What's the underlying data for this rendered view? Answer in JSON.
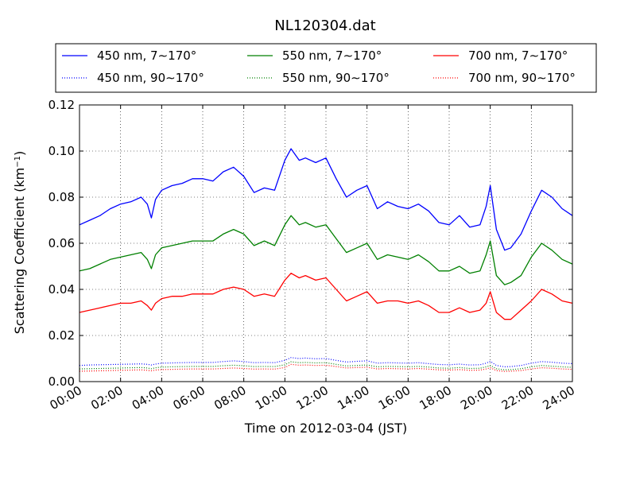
{
  "chart_data": {
    "type": "line",
    "title": "NL120304.dat",
    "xlabel": "Time on 2012-03-04 (JST)",
    "ylabel_main": "Scattering Coefficient (km",
    "ylabel_sup": "−1",
    "ylabel_end": ")",
    "xlim": [
      0,
      24
    ],
    "ylim": [
      0,
      0.12
    ],
    "grid": true,
    "legend_position": "above plot",
    "x_ticks": [
      0,
      2,
      4,
      6,
      8,
      10,
      12,
      14,
      16,
      18,
      20,
      22,
      24
    ],
    "x_tick_labels": [
      "00:00",
      "02:00",
      "04:00",
      "06:00",
      "08:00",
      "10:00",
      "12:00",
      "14:00",
      "16:00",
      "18:00",
      "20:00",
      "22:00",
      "24:00"
    ],
    "y_ticks": [
      0,
      0.02,
      0.04,
      0.06,
      0.08,
      0.1,
      0.12
    ],
    "y_tick_labels": [
      "0.00",
      "0.02",
      "0.04",
      "0.06",
      "0.08",
      "0.10",
      "0.12"
    ],
    "x": [
      0,
      0.5,
      1,
      1.5,
      2,
      2.5,
      3,
      3.3,
      3.5,
      3.7,
      4,
      4.5,
      5,
      5.5,
      6,
      6.5,
      7,
      7.5,
      8,
      8.5,
      9,
      9.5,
      10,
      10.3,
      10.7,
      11,
      11.5,
      12,
      12.5,
      13,
      13.5,
      14,
      14.5,
      15,
      15.5,
      16,
      16.5,
      17,
      17.5,
      18,
      18.5,
      19,
      19.5,
      19.8,
      20,
      20.3,
      20.7,
      21,
      21.5,
      22,
      22.5,
      23,
      23.5,
      24
    ],
    "series": [
      {
        "name": "450 nm, 7∼170°",
        "color": "#0000ff",
        "style": "solid",
        "values": [
          0.068,
          0.07,
          0.072,
          0.075,
          0.077,
          0.078,
          0.08,
          0.077,
          0.071,
          0.079,
          0.083,
          0.085,
          0.086,
          0.088,
          0.088,
          0.087,
          0.091,
          0.093,
          0.089,
          0.082,
          0.084,
          0.083,
          0.096,
          0.101,
          0.096,
          0.097,
          0.095,
          0.097,
          0.088,
          0.08,
          0.083,
          0.085,
          0.075,
          0.078,
          0.076,
          0.075,
          0.077,
          0.074,
          0.069,
          0.068,
          0.072,
          0.067,
          0.068,
          0.076,
          0.085,
          0.066,
          0.057,
          0.058,
          0.064,
          0.074,
          0.083,
          0.08,
          0.075,
          0.072
        ]
      },
      {
        "name": "550 nm, 7∼170°",
        "color": "#008000",
        "style": "solid",
        "values": [
          0.048,
          0.049,
          0.051,
          0.053,
          0.054,
          0.055,
          0.056,
          0.053,
          0.049,
          0.055,
          0.058,
          0.059,
          0.06,
          0.061,
          0.061,
          0.061,
          0.064,
          0.066,
          0.064,
          0.059,
          0.061,
          0.059,
          0.068,
          0.072,
          0.068,
          0.069,
          0.067,
          0.068,
          0.062,
          0.056,
          0.058,
          0.06,
          0.053,
          0.055,
          0.054,
          0.053,
          0.055,
          0.052,
          0.048,
          0.048,
          0.05,
          0.047,
          0.048,
          0.055,
          0.061,
          0.046,
          0.042,
          0.043,
          0.046,
          0.054,
          0.06,
          0.057,
          0.053,
          0.051
        ]
      },
      {
        "name": "700 nm, 7∼170°",
        "color": "#ff0000",
        "style": "solid",
        "values": [
          0.03,
          0.031,
          0.032,
          0.033,
          0.034,
          0.034,
          0.035,
          0.033,
          0.031,
          0.034,
          0.036,
          0.037,
          0.037,
          0.038,
          0.038,
          0.038,
          0.04,
          0.041,
          0.04,
          0.037,
          0.038,
          0.037,
          0.044,
          0.047,
          0.045,
          0.046,
          0.044,
          0.045,
          0.04,
          0.035,
          0.037,
          0.039,
          0.034,
          0.035,
          0.035,
          0.034,
          0.035,
          0.033,
          0.03,
          0.03,
          0.032,
          0.03,
          0.031,
          0.034,
          0.039,
          0.03,
          0.027,
          0.027,
          0.031,
          0.035,
          0.04,
          0.038,
          0.035,
          0.034
        ]
      },
      {
        "name": "450 nm, 90∼170°",
        "color": "#0000ff",
        "style": "dotted",
        "values": [
          0.007,
          0.0072,
          0.0073,
          0.0074,
          0.0075,
          0.0076,
          0.0077,
          0.0075,
          0.0072,
          0.0076,
          0.008,
          0.0081,
          0.0082,
          0.0083,
          0.0083,
          0.0083,
          0.0087,
          0.009,
          0.0087,
          0.0082,
          0.0083,
          0.0082,
          0.0092,
          0.0104,
          0.01,
          0.0102,
          0.0099,
          0.01,
          0.0092,
          0.0085,
          0.0088,
          0.009,
          0.008,
          0.0082,
          0.0081,
          0.008,
          0.0082,
          0.0078,
          0.0074,
          0.0073,
          0.0076,
          0.0072,
          0.0073,
          0.008,
          0.0088,
          0.007,
          0.0064,
          0.0065,
          0.007,
          0.008,
          0.0087,
          0.0084,
          0.008,
          0.0078
        ]
      },
      {
        "name": "550 nm, 90∼170°",
        "color": "#008000",
        "style": "dotted",
        "values": [
          0.0055,
          0.0056,
          0.0057,
          0.0058,
          0.0059,
          0.006,
          0.0061,
          0.0059,
          0.0056,
          0.006,
          0.0063,
          0.0064,
          0.0065,
          0.0066,
          0.0066,
          0.0066,
          0.0069,
          0.0071,
          0.0069,
          0.0065,
          0.0066,
          0.0065,
          0.0073,
          0.0086,
          0.0082,
          0.0083,
          0.0081,
          0.0082,
          0.0075,
          0.0068,
          0.007,
          0.0072,
          0.0064,
          0.0066,
          0.0065,
          0.0064,
          0.0066,
          0.0063,
          0.0059,
          0.0058,
          0.0061,
          0.0057,
          0.0058,
          0.0064,
          0.007,
          0.0056,
          0.0051,
          0.0052,
          0.0056,
          0.0064,
          0.007,
          0.0067,
          0.0064,
          0.0062
        ]
      },
      {
        "name": "700 nm, 90∼170°",
        "color": "#ff0000",
        "style": "dotted",
        "values": [
          0.0045,
          0.0046,
          0.0047,
          0.0048,
          0.0049,
          0.005,
          0.0051,
          0.0049,
          0.0047,
          0.005,
          0.0052,
          0.0053,
          0.0054,
          0.0055,
          0.0055,
          0.0055,
          0.0057,
          0.0059,
          0.0057,
          0.0054,
          0.0055,
          0.0054,
          0.0061,
          0.0075,
          0.0071,
          0.0072,
          0.007,
          0.0071,
          0.0065,
          0.0059,
          0.0061,
          0.0062,
          0.0055,
          0.0057,
          0.0056,
          0.0055,
          0.0057,
          0.0054,
          0.0051,
          0.005,
          0.0052,
          0.0049,
          0.005,
          0.0055,
          0.006,
          0.0048,
          0.0044,
          0.0045,
          0.0048,
          0.0055,
          0.006,
          0.0058,
          0.0055,
          0.0053
        ]
      }
    ]
  }
}
